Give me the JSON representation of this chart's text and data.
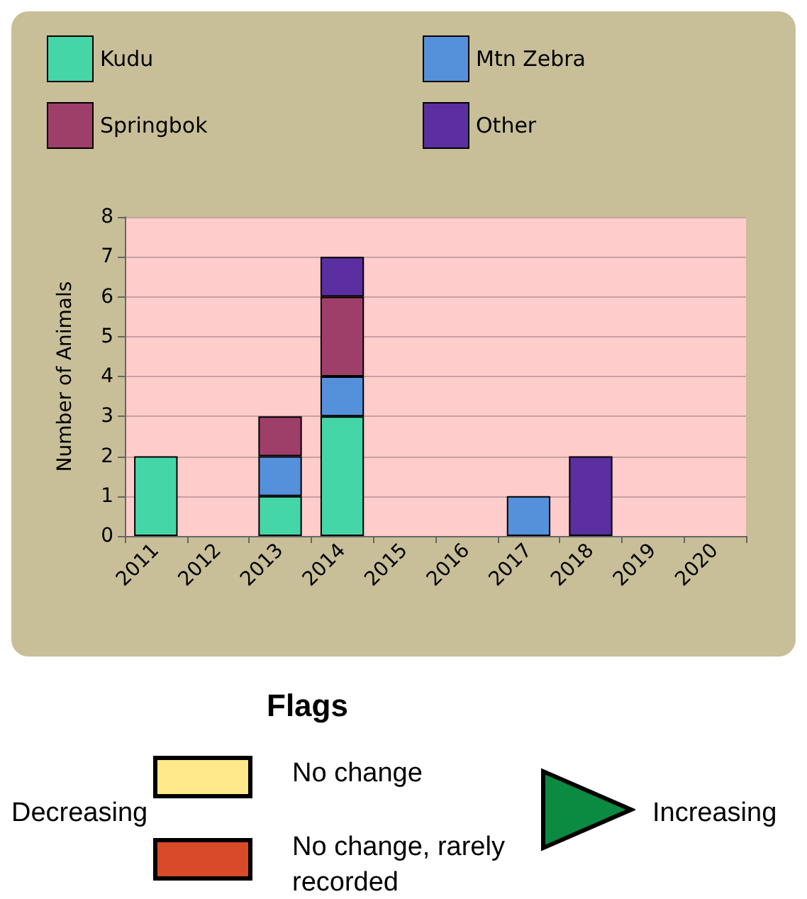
{
  "chart_data": {
    "type": "bar",
    "stacked": true,
    "ylabel": "Number of Animals",
    "categories": [
      "2011",
      "2012",
      "2013",
      "2014",
      "2015",
      "2016",
      "2017",
      "2018",
      "2019",
      "2020"
    ],
    "series": [
      {
        "name": "Kudu",
        "color": "#45d6a8",
        "values": [
          2,
          0,
          1,
          3,
          0,
          0,
          0,
          0,
          0,
          0
        ]
      },
      {
        "name": "Mtn Zebra",
        "color": "#5590db",
        "values": [
          0,
          0,
          1,
          1,
          0,
          0,
          1,
          0,
          0,
          0
        ]
      },
      {
        "name": "Springbok",
        "color": "#9e3f6a",
        "values": [
          0,
          0,
          1,
          2,
          0,
          0,
          0,
          0,
          0,
          0
        ]
      },
      {
        "name": "Other",
        "color": "#5b2fa0",
        "values": [
          0,
          0,
          0,
          1,
          0,
          0,
          0,
          2,
          0,
          0
        ]
      }
    ],
    "ylim": [
      0,
      8
    ],
    "yticks": [
      0,
      1,
      2,
      3,
      4,
      5,
      6,
      7,
      8
    ],
    "grid": "y",
    "legend": "top",
    "annotations": [
      "Flags",
      "Decreasing",
      "No change",
      "No change, rarely recorded",
      "Increasing"
    ]
  }
}
